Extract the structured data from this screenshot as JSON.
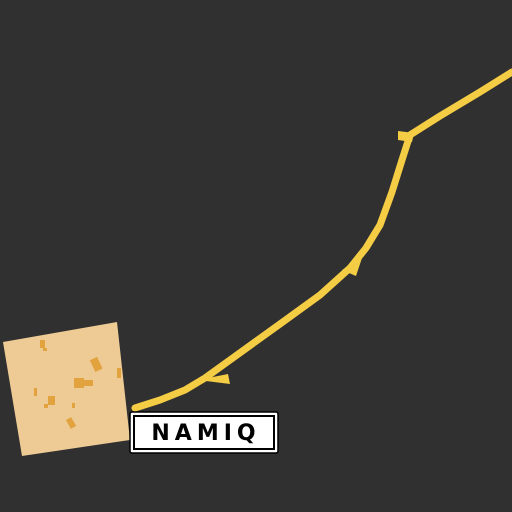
{
  "place_label": "NAMIQ"
}
